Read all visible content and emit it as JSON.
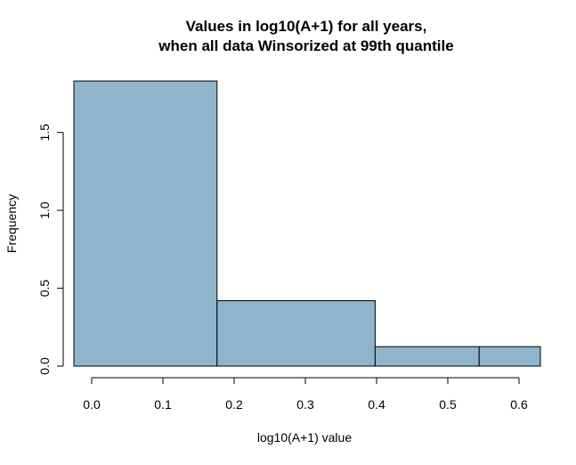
{
  "chart_data": {
    "type": "bar",
    "title_lines": [
      "Values in log10(A+1) for all years,",
      "when all data Winsorized at 99th quantile"
    ],
    "xlabel": "log10(A+1) value",
    "ylabel": "Frequency",
    "xlim": [
      -0.03,
      0.63
    ],
    "ylim": [
      0,
      1.83
    ],
    "x_ticks": [
      0.0,
      0.1,
      0.2,
      0.3,
      0.4,
      0.5,
      0.6
    ],
    "x_tick_labels": [
      "0.0",
      "0.1",
      "0.2",
      "0.3",
      "0.4",
      "0.5",
      "0.6"
    ],
    "y_ticks": [
      0.0,
      0.5,
      1.0,
      1.5
    ],
    "y_tick_labels": [
      "0.0",
      "0.5",
      "1.0",
      "1.5"
    ],
    "bins": [
      {
        "x0": -0.025,
        "x1": 0.176,
        "frequency": 1.83
      },
      {
        "x0": 0.176,
        "x1": 0.398,
        "frequency": 0.42
      },
      {
        "x0": 0.398,
        "x1": 0.544,
        "frequency": 0.125
      },
      {
        "x0": 0.544,
        "x1": 0.63,
        "frequency": 0.125
      }
    ],
    "bar_color": "#8fb5cb",
    "grid": false,
    "legend": "none"
  }
}
